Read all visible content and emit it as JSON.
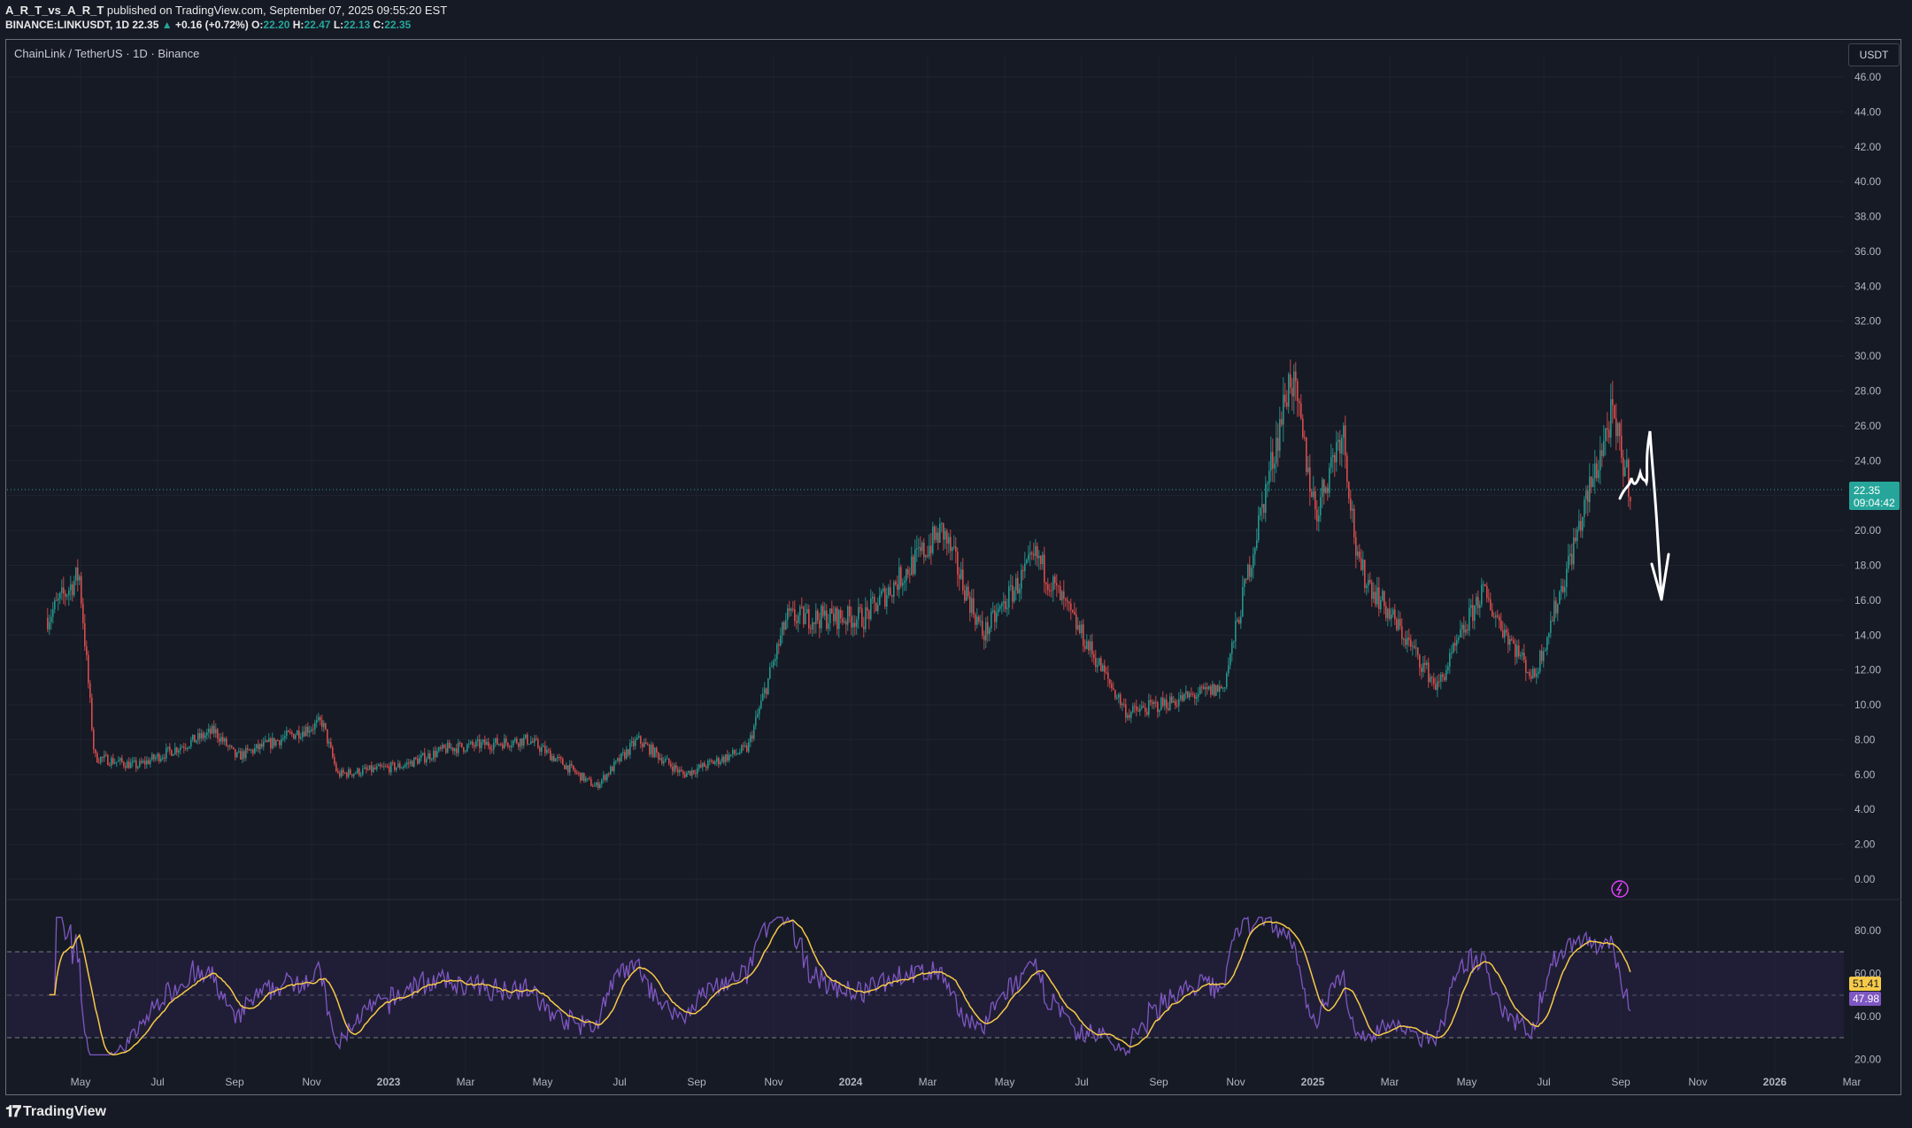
{
  "header": {
    "author": "A_R_T_vs_A_R_T",
    "published": "published on TradingView.com, September 07, 2025 09:55:20 EST",
    "symbol_line": "BINANCE:LINKUSDT, 1D",
    "last": "22.35",
    "change_arrow": "▲",
    "change": "+0.16 (+0.72%)",
    "o_label": "O:",
    "o": "22.20",
    "h_label": "H:",
    "h": "22.47",
    "l_label": "L:",
    "l": "22.13",
    "c_label": "C:",
    "c": "22.35"
  },
  "chart_title": "ChainLink / TetherUS · 1D · Binance",
  "currency_button": "USDT",
  "price_tag": {
    "price": "22.35",
    "countdown": "09:04:42"
  },
  "rsi_tags": {
    "rsi": "51.41",
    "ma": "47.98"
  },
  "footer_logo": "TradingView",
  "colors": {
    "background": "#161a25",
    "up": "#26a69a",
    "down": "#ef5350",
    "rsi": "#7e57c2",
    "rsi_ma": "#f7c948",
    "rsi_band": "#2a2346"
  },
  "chart_data": {
    "type": "candlestick",
    "price_axis": {
      "min": 0,
      "max": 46,
      "ticks": [
        "46.00",
        "44.00",
        "42.00",
        "40.00",
        "38.00",
        "36.00",
        "34.00",
        "32.00",
        "30.00",
        "28.00",
        "26.00",
        "24.00",
        "22.00",
        "20.00",
        "18.00",
        "16.00",
        "14.00",
        "12.00",
        "10.00",
        "8.00",
        "6.00",
        "4.00",
        "2.00",
        "0.00"
      ]
    },
    "rsi_axis": {
      "min": 20,
      "max": 80,
      "ticks": [
        "80.00",
        "60.00",
        "40.00",
        "20.00"
      ],
      "bands": [
        70,
        50,
        30
      ]
    },
    "time_axis": [
      "May",
      "Jul",
      "Sep",
      "Nov",
      "2023",
      "Mar",
      "May",
      "Jul",
      "Sep",
      "Nov",
      "2024",
      "Mar",
      "May",
      "Jul",
      "Sep",
      "Nov",
      "2025",
      "Mar",
      "May",
      "Jul",
      "Sep",
      "Nov",
      "2026",
      "Mar"
    ],
    "approx_close_path": [
      {
        "t": "2022-04-05",
        "v": 15
      },
      {
        "t": "2022-04-30",
        "v": 17.5
      },
      {
        "t": "2022-05-12",
        "v": 7
      },
      {
        "t": "2022-06-15",
        "v": 6.5
      },
      {
        "t": "2022-08-15",
        "v": 8.5
      },
      {
        "t": "2022-09-01",
        "v": 7
      },
      {
        "t": "2022-11-08",
        "v": 9
      },
      {
        "t": "2022-11-20",
        "v": 6
      },
      {
        "t": "2023-01-10",
        "v": 6.5
      },
      {
        "t": "2023-02-15",
        "v": 7.5
      },
      {
        "t": "2023-04-20",
        "v": 8
      },
      {
        "t": "2023-06-12",
        "v": 5.3
      },
      {
        "t": "2023-07-15",
        "v": 8
      },
      {
        "t": "2023-08-20",
        "v": 6
      },
      {
        "t": "2023-10-10",
        "v": 7.5
      },
      {
        "t": "2023-11-10",
        "v": 15
      },
      {
        "t": "2024-01-10",
        "v": 15
      },
      {
        "t": "2024-03-12",
        "v": 20
      },
      {
        "t": "2024-04-13",
        "v": 14
      },
      {
        "t": "2024-05-25",
        "v": 18.5
      },
      {
        "t": "2024-08-05",
        "v": 9.5
      },
      {
        "t": "2024-10-20",
        "v": 11
      },
      {
        "t": "2024-12-12",
        "v": 29
      },
      {
        "t": "2025-01-01",
        "v": 21
      },
      {
        "t": "2025-01-22",
        "v": 26
      },
      {
        "t": "2025-02-03",
        "v": 18
      },
      {
        "t": "2025-04-07",
        "v": 11
      },
      {
        "t": "2025-05-12",
        "v": 16.5
      },
      {
        "t": "2025-06-22",
        "v": 11.5
      },
      {
        "t": "2025-07-15",
        "v": 17
      },
      {
        "t": "2025-08-22",
        "v": 26.5
      },
      {
        "t": "2025-09-07",
        "v": 22.35
      }
    ],
    "annotation": "hand-drawn arrow pointing down from ~26 toward ~16"
  }
}
